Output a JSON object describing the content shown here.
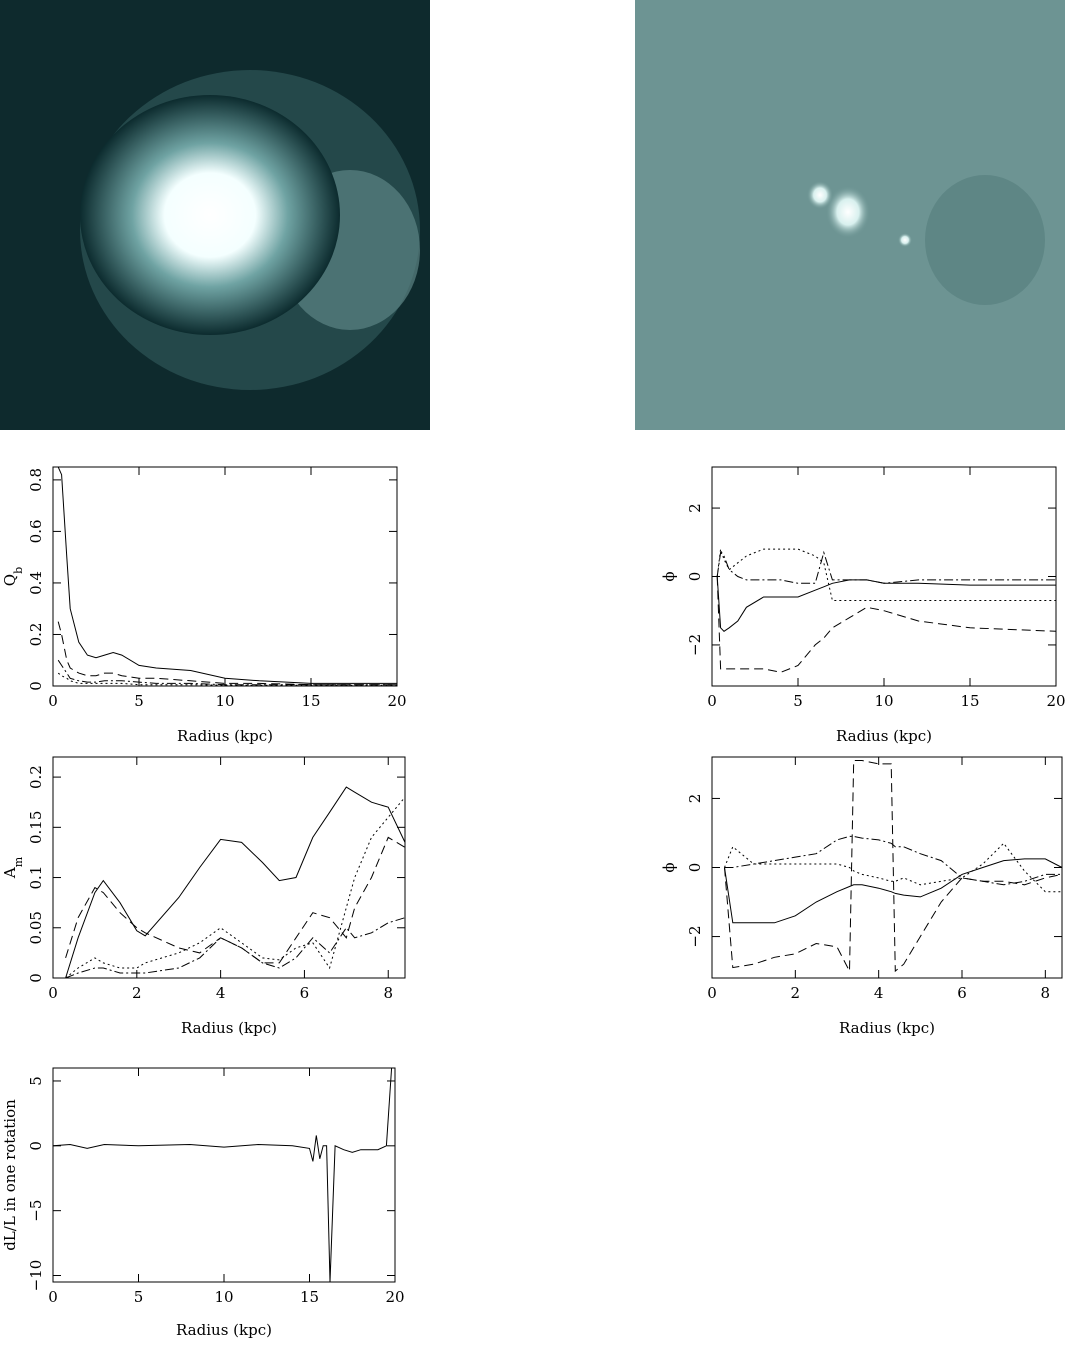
{
  "chart_data": [
    {
      "type": "line",
      "xlabel": "Radius (kpc)",
      "ylabel": [
        "Q",
        "b"
      ],
      "x": [
        0.3,
        0.5,
        0.8,
        1,
        1.5,
        2,
        2.5,
        3,
        3.5,
        4,
        5,
        6,
        8,
        10,
        12,
        15,
        20
      ],
      "series": [
        {
          "color": "#000000",
          "dash": "solid",
          "values": [
            0.85,
            0.82,
            0.5,
            0.3,
            0.17,
            0.12,
            0.11,
            0.12,
            0.13,
            0.12,
            0.08,
            0.07,
            0.06,
            0.03,
            0.02,
            0.01,
            0.01
          ]
        },
        {
          "color": "#000000",
          "dash": "dashed",
          "values": [
            0.25,
            0.2,
            0.1,
            0.07,
            0.05,
            0.04,
            0.04,
            0.05,
            0.05,
            0.04,
            0.03,
            0.03,
            0.02,
            0.01,
            0.01,
            0.005,
            0.005
          ]
        },
        {
          "color": "#000000",
          "dash": "dashdot",
          "values": [
            0.1,
            0.08,
            0.05,
            0.03,
            0.02,
            0.015,
            0.015,
            0.02,
            0.02,
            0.02,
            0.015,
            0.01,
            0.01,
            0.005,
            0.005,
            0.005,
            0.005
          ]
        },
        {
          "color": "#000000",
          "dash": "dotted",
          "values": [
            0.05,
            0.04,
            0.03,
            0.02,
            0.01,
            0.01,
            0.01,
            0.01,
            0.01,
            0.01,
            0.005,
            0.005,
            0.005,
            0.003,
            0.003,
            0.003,
            0.003
          ]
        }
      ],
      "xlim": [
        0,
        20
      ],
      "xticks": [
        0,
        5,
        10,
        15,
        20
      ],
      "ylim": [
        0,
        0.85
      ],
      "yticks": [
        0,
        0.2,
        0.4,
        0.6,
        0.8
      ]
    },
    {
      "type": "line",
      "xlabel": "Radius (kpc)",
      "ylabel": [
        "ϕ"
      ],
      "x": [
        0.3,
        0.5,
        0.7,
        1,
        1.5,
        2,
        3,
        4,
        5,
        6,
        6.5,
        7,
        8,
        9,
        10,
        12,
        15,
        20
      ],
      "series": [
        {
          "color": "#000000",
          "dash": "solid",
          "values": [
            0,
            -1.5,
            -1.6,
            -1.5,
            -1.3,
            -0.9,
            -0.6,
            -0.6,
            -0.6,
            -0.4,
            -0.3,
            -0.2,
            -0.1,
            -0.1,
            -0.2,
            -0.2,
            -0.25,
            -0.25
          ]
        },
        {
          "color": "#000000",
          "dash": "dashed",
          "values": [
            0,
            -2.7,
            -2.7,
            -2.7,
            -2.7,
            -2.7,
            -2.7,
            -2.8,
            -2.6,
            -2.0,
            -1.8,
            -1.5,
            -1.2,
            -0.9,
            -1.0,
            -1.3,
            -1.5,
            -1.6
          ]
        },
        {
          "color": "#000000",
          "dash": "dotted",
          "values": [
            0,
            0.8,
            0.5,
            0.2,
            0.4,
            0.6,
            0.8,
            0.8,
            0.8,
            0.6,
            0.4,
            -0.7,
            -0.7,
            -0.7,
            -0.7,
            -0.7,
            -0.7,
            -0.7
          ]
        },
        {
          "color": "#000000",
          "dash": "dashdot",
          "values": [
            0,
            0.7,
            0.6,
            0.2,
            0,
            -0.1,
            -0.1,
            -0.1,
            -0.2,
            -0.2,
            0.7,
            -0.1,
            -0.1,
            -0.1,
            -0.2,
            -0.1,
            -0.1,
            -0.1
          ]
        }
      ],
      "xlim": [
        0,
        20
      ],
      "xticks": [
        0,
        5,
        10,
        15,
        20
      ],
      "ylim": [
        -3.2,
        3.2
      ],
      "yticks": [
        {
          "value": -2,
          "label": "−2"
        },
        0,
        2
      ]
    },
    {
      "type": "line",
      "xlabel": "Radius (kpc)",
      "ylabel": [
        "A",
        "m"
      ],
      "x": [
        0.3,
        0.6,
        1,
        1.2,
        1.6,
        2,
        2.2,
        3,
        3.5,
        4,
        4.5,
        5,
        5.4,
        5.8,
        6.2,
        6.6,
        7,
        7.2,
        7.6,
        8,
        8.4
      ],
      "series": [
        {
          "color": "#000000",
          "dash": "solid",
          "values": [
            0,
            0.04,
            0.085,
            0.097,
            0.075,
            0.047,
            0.042,
            0.08,
            0.11,
            0.138,
            0.135,
            0.115,
            0.097,
            0.1,
            0.14,
            0.165,
            0.19,
            0.185,
            0.175,
            0.17,
            0.135
          ]
        },
        {
          "color": "#000000",
          "dash": "dashed",
          "values": [
            0.02,
            0.06,
            0.09,
            0.085,
            0.065,
            0.05,
            0.045,
            0.03,
            0.025,
            0.04,
            0.03,
            0.015,
            0.015,
            0.04,
            0.065,
            0.06,
            0.04,
            0.07,
            0.1,
            0.14,
            0.13
          ]
        },
        {
          "color": "#000000",
          "dash": "dotted",
          "values": [
            0,
            0.01,
            0.02,
            0.015,
            0.01,
            0.01,
            0.015,
            0.025,
            0.035,
            0.05,
            0.035,
            0.02,
            0.018,
            0.03,
            0.035,
            0.01,
            0.07,
            0.1,
            0.14,
            0.16,
            0.18
          ]
        },
        {
          "color": "#000000",
          "dash": "dashdot",
          "values": [
            0,
            0.005,
            0.01,
            0.01,
            0.005,
            0.005,
            0.005,
            0.01,
            0.02,
            0.04,
            0.03,
            0.015,
            0.01,
            0.02,
            0.04,
            0.025,
            0.05,
            0.04,
            0.045,
            0.055,
            0.06
          ]
        }
      ],
      "xlim": [
        0,
        8.4
      ],
      "xticks": [
        0,
        2,
        4,
        6,
        8
      ],
      "ylim": [
        0,
        0.22
      ],
      "yticks": [
        0,
        0.05,
        0.1,
        0.15,
        0.2
      ]
    },
    {
      "type": "line",
      "xlabel": "Radius (kpc)",
      "ylabel": [
        "ϕ"
      ],
      "x": [
        0.3,
        0.5,
        1,
        1.5,
        2,
        2.5,
        3,
        3.3,
        3.4,
        3.6,
        4,
        4.3,
        4.4,
        4.6,
        5,
        5.5,
        6,
        6.5,
        7,
        7.5,
        8,
        8.4
      ],
      "series": [
        {
          "color": "#000000",
          "dash": "solid",
          "values": [
            0,
            -1.6,
            -1.6,
            -1.6,
            -1.4,
            -1.0,
            -0.7,
            -0.55,
            -0.5,
            -0.5,
            -0.6,
            -0.7,
            -0.75,
            -0.8,
            -0.85,
            -0.6,
            -0.2,
            0,
            0.2,
            0.25,
            0.25,
            0
          ]
        },
        {
          "color": "#000000",
          "dash": "dashed",
          "values": [
            0,
            -2.9,
            -2.8,
            -2.6,
            -2.5,
            -2.2,
            -2.3,
            -3.0,
            3.1,
            3.1,
            3.0,
            3.0,
            -3.0,
            -2.8,
            -2.0,
            -1.0,
            -0.3,
            -0.4,
            -0.4,
            -0.5,
            -0.3,
            -0.2
          ]
        },
        {
          "color": "#000000",
          "dash": "dotted",
          "values": [
            0,
            0.6,
            0.1,
            0.1,
            0.1,
            0.1,
            0.1,
            0.0,
            -0.1,
            -0.2,
            -0.3,
            -0.4,
            -0.4,
            -0.3,
            -0.5,
            -0.4,
            -0.3,
            0.1,
            0.7,
            -0.1,
            -0.7,
            -0.7
          ]
        },
        {
          "color": "#000000",
          "dash": "dashdot",
          "values": [
            0,
            0,
            0.1,
            0.2,
            0.3,
            0.4,
            0.8,
            0.9,
            0.9,
            0.85,
            0.8,
            0.7,
            0.6,
            0.6,
            0.4,
            0.2,
            -0.3,
            -0.4,
            -0.5,
            -0.4,
            -0.2,
            -0.2
          ]
        }
      ],
      "xlim": [
        0,
        8.4
      ],
      "xticks": [
        0,
        2,
        4,
        6,
        8
      ],
      "ylim": [
        -3.2,
        3.2
      ],
      "yticks": [
        {
          "value": -2,
          "label": "−2"
        },
        0,
        2
      ]
    },
    {
      "type": "line",
      "xlabel": "Radius (kpc)",
      "ylabel": [
        "dL/L in one rotation"
      ],
      "x": [
        0,
        1,
        2,
        3,
        5,
        8,
        10,
        12,
        14,
        15,
        15.2,
        15.4,
        15.6,
        15.8,
        16,
        16.2,
        16.5,
        17,
        17.5,
        18,
        19,
        19.5,
        19.8,
        20
      ],
      "series": [
        {
          "color": "#000000",
          "dash": "solid",
          "values": [
            0,
            0.1,
            -0.2,
            0.1,
            0,
            0.1,
            -0.1,
            0.1,
            0,
            -0.2,
            -1.2,
            0.8,
            -1,
            0,
            0,
            -10.5,
            0,
            -0.3,
            -0.5,
            -0.3,
            -0.3,
            0,
            6,
            6
          ]
        }
      ],
      "xlim": [
        0,
        20
      ],
      "xticks": [
        0,
        5,
        10,
        15,
        20
      ],
      "ylim": [
        -10.5,
        6
      ],
      "yticks": [
        {
          "value": -10,
          "label": "−10"
        },
        {
          "value": -5,
          "label": "−5"
        },
        0,
        5
      ]
    }
  ]
}
